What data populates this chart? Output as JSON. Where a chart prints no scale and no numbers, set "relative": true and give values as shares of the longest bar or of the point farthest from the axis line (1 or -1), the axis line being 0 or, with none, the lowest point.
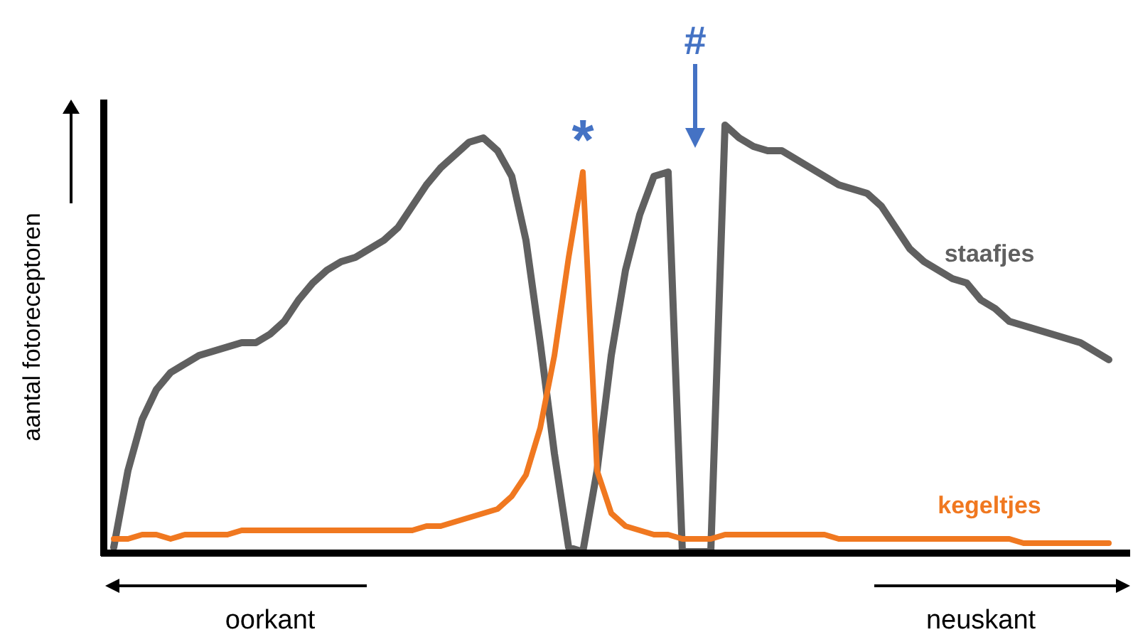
{
  "chart_data": {
    "type": "line",
    "relative": true,
    "ylabel": "aantal fotoreceptoren",
    "legend": false,
    "categories": [
      null,
      null,
      null,
      null,
      null,
      null,
      null,
      null,
      null,
      null,
      null,
      null,
      null,
      null,
      null,
      null,
      null,
      null,
      null,
      null,
      null,
      null,
      null,
      null,
      null,
      null,
      null,
      null,
      null,
      null,
      null,
      null,
      null,
      null,
      null,
      null,
      null,
      null,
      null,
      null,
      null,
      null,
      null,
      null,
      null,
      null,
      null,
      null,
      null,
      null,
      null,
      null,
      null,
      null,
      null,
      null,
      null,
      null,
      null,
      null,
      null,
      null,
      null,
      null,
      null,
      null,
      null,
      null,
      null,
      null,
      null
    ],
    "series": [
      {
        "name": "staafjes",
        "color": "#606060",
        "values": [
          0.01,
          0.19,
          0.31,
          0.38,
          0.42,
          0.44,
          0.46,
          0.47,
          0.48,
          0.49,
          0.49,
          0.51,
          0.54,
          0.59,
          0.63,
          0.66,
          0.68,
          0.69,
          0.71,
          0.73,
          0.76,
          0.81,
          0.86,
          0.9,
          0.93,
          0.96,
          0.97,
          0.94,
          0.88,
          0.73,
          0.49,
          0.23,
          0.01,
          0,
          0.19,
          0.46,
          0.66,
          0.79,
          0.88,
          0.89,
          0,
          0,
          0,
          1,
          0.97,
          0.95,
          0.94,
          0.94,
          0.92,
          0.9,
          0.88,
          0.86,
          0.85,
          0.84,
          0.81,
          0.76,
          0.71,
          0.68,
          0.66,
          0.64,
          0.63,
          0.59,
          0.57,
          0.54,
          0.53,
          0.52,
          0.51,
          0.5,
          0.49,
          0.47,
          0.45
        ]
      },
      {
        "name": "kegeltjes",
        "color": "#f07820",
        "values": [
          0.03,
          0.03,
          0.04,
          0.04,
          0.03,
          0.04,
          0.04,
          0.04,
          0.04,
          0.05,
          0.05,
          0.05,
          0.05,
          0.05,
          0.05,
          0.05,
          0.05,
          0.05,
          0.05,
          0.05,
          0.05,
          0.05,
          0.06,
          0.06,
          0.07,
          0.08,
          0.09,
          0.1,
          0.13,
          0.18,
          0.29,
          0.46,
          0.69,
          0.89,
          0.19,
          0.09,
          0.06,
          0.05,
          0.04,
          0.04,
          0.03,
          0.03,
          0.03,
          0.04,
          0.04,
          0.04,
          0.04,
          0.04,
          0.04,
          0.04,
          0.04,
          0.03,
          0.03,
          0.03,
          0.03,
          0.03,
          0.03,
          0.03,
          0.03,
          0.03,
          0.03,
          0.03,
          0.03,
          0.03,
          0.02,
          0.02,
          0.02,
          0.02,
          0.02,
          0.02,
          0.02
        ]
      }
    ],
    "annotations": [
      "*",
      "#",
      "oorkant",
      "neuskant"
    ]
  }
}
